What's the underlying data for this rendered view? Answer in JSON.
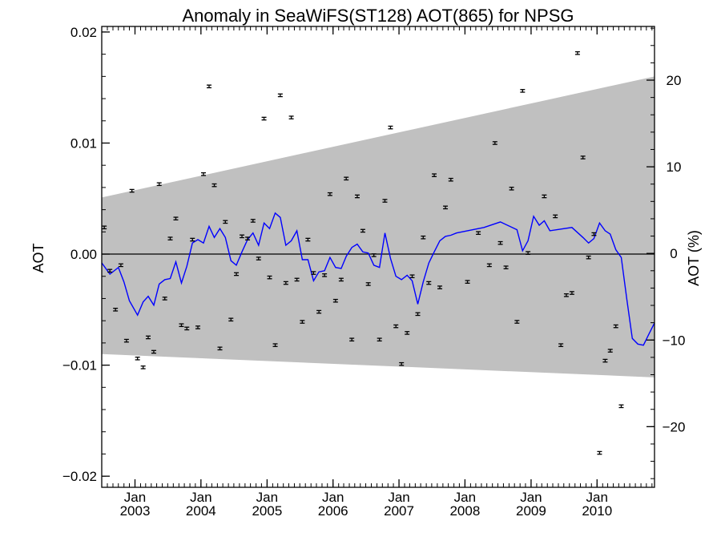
{
  "chart_data": {
    "type": "scatter",
    "title": "Anomaly in SeaWiFS(ST128) AOT(865) for NPSG",
    "ylabel": "AOT",
    "ylabel_right": "AOT (%)",
    "xlim": [
      "2002-07-01",
      "2010-11-15"
    ],
    "ylim": [
      -0.021,
      0.0205
    ],
    "y2lim": [
      -27,
      26.2
    ],
    "yticks": [
      {
        "v": 0.02,
        "label": "0.02"
      },
      {
        "v": 0.01,
        "label": "0.01"
      },
      {
        "v": 0.0,
        "label": "0.00"
      },
      {
        "v": -0.01,
        "label": "−0.01"
      },
      {
        "v": -0.02,
        "label": "−0.02"
      }
    ],
    "y2ticks": [
      {
        "v": 20,
        "label": "20"
      },
      {
        "v": 10,
        "label": "10"
      },
      {
        "v": 0,
        "label": "0"
      },
      {
        "v": -10,
        "label": "−10"
      },
      {
        "v": -20,
        "label": "−20"
      }
    ],
    "xticks": [
      {
        "date": "2003-01-01",
        "month": "Jan",
        "year": "2003"
      },
      {
        "date": "2004-01-01",
        "month": "Jan",
        "year": "2004"
      },
      {
        "date": "2005-01-01",
        "month": "Jan",
        "year": "2005"
      },
      {
        "date": "2006-01-01",
        "month": "Jan",
        "year": "2006"
      },
      {
        "date": "2007-01-01",
        "month": "Jan",
        "year": "2007"
      },
      {
        "date": "2008-01-01",
        "month": "Jan",
        "year": "2008"
      },
      {
        "date": "2009-01-01",
        "month": "Jan",
        "year": "2009"
      },
      {
        "date": "2010-01-01",
        "month": "Jan",
        "year": "2010"
      }
    ],
    "band": {
      "start": "2002-07-01",
      "end": "2010-11-15",
      "upper": [
        0.0051,
        0.016
      ],
      "lower": [
        -0.009,
        -0.0111
      ],
      "color": "#c0c0c0"
    },
    "zero_line": 0.0,
    "monthly_points": {
      "start": "2002-07-01",
      "error": 0.00012,
      "values": [
        0.0024,
        -0.0015,
        -0.005,
        -0.001,
        -0.0078,
        0.0057,
        -0.0094,
        -0.0102,
        -0.0075,
        -0.0088,
        0.0063,
        -0.004,
        0.0014,
        0.0032,
        -0.0064,
        -0.0067,
        0.0013,
        -0.0066,
        0.0072,
        0.0151,
        0.0062,
        -0.0085,
        0.0029,
        -0.0059,
        -0.0018,
        0.0016,
        0.0014,
        0.003,
        -0.0004,
        0.0122,
        -0.0021,
        -0.0082,
        0.0143,
        -0.0026,
        0.0123,
        -0.0023,
        -0.0061,
        0.0013,
        -0.0017,
        -0.0052,
        -0.0019,
        0.0054,
        -0.0042,
        -0.0023,
        0.0068,
        -0.0077,
        0.0052,
        0.0021,
        -0.0027,
        -0.0001,
        -0.0077,
        0.0048,
        0.0114,
        -0.0065,
        -0.0099,
        -0.0071,
        -0.002,
        -0.0054,
        0.0015,
        -0.0026,
        0.0071,
        -0.003,
        0.0042,
        0.0067,
        null,
        null,
        -0.0025,
        null,
        0.0019,
        null,
        -0.001,
        0.01,
        0.001,
        -0.0012,
        0.0059,
        -0.0061,
        0.0147,
        0.0001,
        null,
        null,
        0.0052,
        null,
        0.0034,
        -0.0082,
        -0.0037,
        -0.0035,
        0.0181,
        0.0087,
        -0.0003,
        0.0018,
        -0.0179,
        -0.0096,
        -0.0087,
        -0.0065,
        -0.0137
      ]
    },
    "series": [
      {
        "color": "#0000ff",
        "points": [
          [
            "2002-07-01",
            -0.0008
          ],
          [
            "2002-08-15",
            -0.0018
          ],
          [
            "2002-10-01",
            -0.0012
          ],
          [
            "2002-11-01",
            -0.0025
          ],
          [
            "2002-12-01",
            -0.0042
          ],
          [
            "2003-01-15",
            -0.0055
          ],
          [
            "2003-02-15",
            -0.0043
          ],
          [
            "2003-03-15",
            -0.0038
          ],
          [
            "2003-04-15",
            -0.0046
          ],
          [
            "2003-05-15",
            -0.0027
          ],
          [
            "2003-06-15",
            -0.0023
          ],
          [
            "2003-07-15",
            -0.0022
          ],
          [
            "2003-08-15",
            -0.0007
          ],
          [
            "2003-09-15",
            -0.0026
          ],
          [
            "2003-10-15",
            -0.0011
          ],
          [
            "2003-11-15",
            0.001
          ],
          [
            "2003-12-15",
            0.0013
          ],
          [
            "2004-01-15",
            0.001
          ],
          [
            "2004-02-15",
            0.0025
          ],
          [
            "2004-03-15",
            0.0015
          ],
          [
            "2004-04-15",
            0.0023
          ],
          [
            "2004-05-15",
            0.0015
          ],
          [
            "2004-06-15",
            -0.0006
          ],
          [
            "2004-07-15",
            -0.001
          ],
          [
            "2004-08-15",
            0.0002
          ],
          [
            "2004-09-15",
            0.0013
          ],
          [
            "2004-10-15",
            0.0019
          ],
          [
            "2004-11-15",
            0.0008
          ],
          [
            "2004-12-15",
            0.0028
          ],
          [
            "2005-01-15",
            0.0023
          ],
          [
            "2005-02-15",
            0.0037
          ],
          [
            "2005-03-15",
            0.0033
          ],
          [
            "2005-04-15",
            0.0008
          ],
          [
            "2005-05-15",
            0.0012
          ],
          [
            "2005-06-15",
            0.0021
          ],
          [
            "2005-07-15",
            -0.0005
          ],
          [
            "2005-08-15",
            -0.0005
          ],
          [
            "2005-09-15",
            -0.0024
          ],
          [
            "2005-10-15",
            -0.0016
          ],
          [
            "2005-11-15",
            -0.0015
          ],
          [
            "2005-12-15",
            -0.0003
          ],
          [
            "2006-01-15",
            -0.0012
          ],
          [
            "2006-02-15",
            -0.0013
          ],
          [
            "2006-03-15",
            -0.0002
          ],
          [
            "2006-04-15",
            0.0006
          ],
          [
            "2006-05-15",
            0.0009
          ],
          [
            "2006-06-15",
            0.0002
          ],
          [
            "2006-07-15",
            0.0001
          ],
          [
            "2006-08-15",
            -0.001
          ],
          [
            "2006-09-15",
            -0.0012
          ],
          [
            "2006-10-15",
            0.0019
          ],
          [
            "2006-11-15",
            -0.0004
          ],
          [
            "2006-12-15",
            -0.002
          ],
          [
            "2007-01-15",
            -0.0023
          ],
          [
            "2007-02-15",
            -0.0019
          ],
          [
            "2007-03-15",
            -0.0024
          ],
          [
            "2007-04-15",
            -0.0045
          ],
          [
            "2007-05-15",
            -0.0025
          ],
          [
            "2007-06-15",
            -0.0008
          ],
          [
            "2007-07-15",
            0.0002
          ],
          [
            "2007-08-15",
            0.0012
          ],
          [
            "2007-09-15",
            0.0016
          ],
          [
            "2007-10-15",
            0.0017
          ],
          [
            "2007-11-15",
            0.0019
          ],
          [
            "2008-04-15",
            0.0024
          ],
          [
            "2008-07-15",
            0.0029
          ],
          [
            "2008-10-15",
            0.0022
          ],
          [
            "2008-11-15",
            0.0003
          ],
          [
            "2008-12-15",
            0.0012
          ],
          [
            "2009-01-15",
            0.0034
          ],
          [
            "2009-02-15",
            0.0026
          ],
          [
            "2009-03-15",
            0.003
          ],
          [
            "2009-04-15",
            0.0021
          ],
          [
            "2009-08-15",
            0.0024
          ],
          [
            "2009-10-15",
            0.0015
          ],
          [
            "2009-11-15",
            0.001
          ],
          [
            "2009-12-15",
            0.0014
          ],
          [
            "2010-01-15",
            0.0028
          ],
          [
            "2010-02-15",
            0.0021
          ],
          [
            "2010-03-15",
            0.0018
          ],
          [
            "2010-04-15",
            0.0004
          ],
          [
            "2010-05-15",
            -0.0003
          ],
          [
            "2010-06-15",
            -0.0041
          ],
          [
            "2010-07-15",
            -0.0076
          ],
          [
            "2010-08-15",
            -0.0081
          ],
          [
            "2010-09-15",
            -0.0082
          ],
          [
            "2010-10-15",
            -0.0072
          ],
          [
            "2010-11-15",
            -0.0062
          ]
        ]
      }
    ]
  }
}
